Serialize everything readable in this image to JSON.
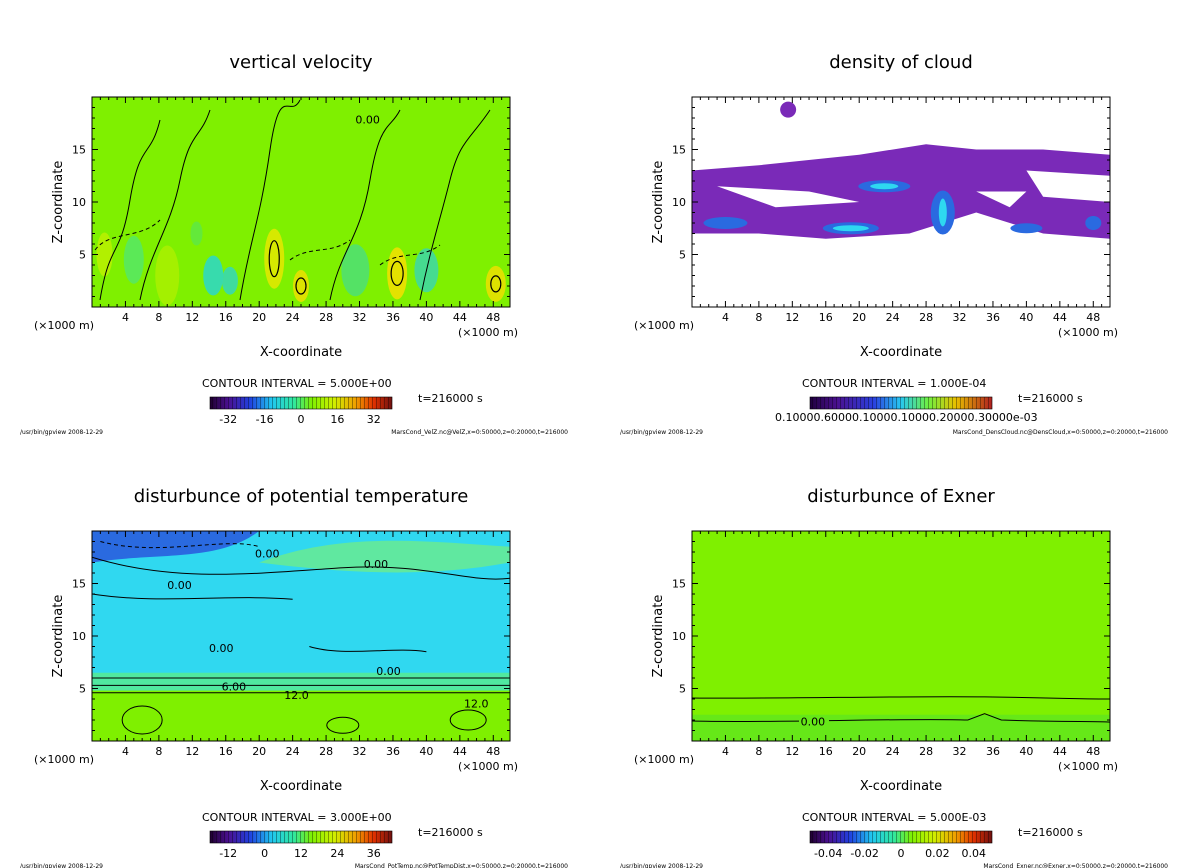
{
  "chart_data": [
    {
      "type": "heatmap",
      "title": "vertical velocity",
      "xlabel": "X-coordinate",
      "ylabel": "Z-coordinate",
      "x_unit_left": "(×1000 m)",
      "x_unit_right": "(×1000 m)",
      "xlim": [
        0,
        50
      ],
      "ylim": [
        0,
        20
      ],
      "xticks": [
        "4",
        "8",
        "12",
        "16",
        "20",
        "24",
        "28",
        "32",
        "36",
        "40",
        "44",
        "48"
      ],
      "yticks": [
        "5",
        "10",
        "15"
      ],
      "contour_interval": "CONTOUR INTERVAL = 5.000E+00",
      "time": "t=216000 s",
      "colorbar": {
        "labels": [
          "-32",
          "-16",
          "0",
          "16",
          "32"
        ],
        "range": [
          -40,
          40
        ]
      },
      "contour_labels": [
        "0.00"
      ],
      "footer_left": "/usr/bin/gpview  2008-12-29",
      "footer_right": "MarsCond_VelZ.nc@VelZ,x=0:50000,z=0:20000,t=216000"
    },
    {
      "type": "heatmap",
      "title": "density of cloud",
      "xlabel": "X-coordinate",
      "ylabel": "Z-coordinate",
      "x_unit_left": "(×1000 m)",
      "x_unit_right": "(×1000 m)",
      "xlim": [
        0,
        50
      ],
      "ylim": [
        0,
        20
      ],
      "xticks": [
        "4",
        "8",
        "12",
        "16",
        "20",
        "24",
        "28",
        "32",
        "36",
        "40",
        "44",
        "48"
      ],
      "yticks": [
        "5",
        "10",
        "15"
      ],
      "contour_interval": "CONTOUR INTERVAL = 1.000E-04",
      "time": "t=216000 s",
      "colorbar": {
        "labels": [
          "0.10000.60000.10000.10000.20000.30000e-03"
        ],
        "range": [
          0,
          0.0004
        ]
      },
      "footer_left": "/usr/bin/gpview  2008-12-29",
      "footer_right": "MarsCond_DensCloud.nc@DensCloud,x=0:50000,z=0:20000,t=216000"
    },
    {
      "type": "heatmap",
      "title": "disturbunce of potential temperature",
      "xlabel": "X-coordinate",
      "ylabel": "Z-coordinate",
      "x_unit_left": "(×1000 m)",
      "x_unit_right": "(×1000 m)",
      "xlim": [
        0,
        50
      ],
      "ylim": [
        0,
        20
      ],
      "xticks": [
        "4",
        "8",
        "12",
        "16",
        "20",
        "24",
        "28",
        "32",
        "36",
        "40",
        "44",
        "48"
      ],
      "yticks": [
        "5",
        "10",
        "15"
      ],
      "contour_interval": "CONTOUR INTERVAL = 3.000E+00",
      "time": "t=216000 s",
      "colorbar": {
        "labels": [
          "-12",
          "0",
          "12",
          "24",
          "36"
        ],
        "range": [
          -18,
          42
        ]
      },
      "contour_labels": [
        "0.00",
        "0.00",
        "0.00",
        "0.00",
        "0.00",
        "6.00",
        "12.0",
        "12.0"
      ],
      "footer_left": "/usr/bin/gpview  2008-12-29",
      "footer_right": "MarsCond_PotTemp.nc@PotTempDist,x=0:50000,z=0:20000,t=216000"
    },
    {
      "type": "heatmap",
      "title": "disturbunce of Exner",
      "xlabel": "X-coordinate",
      "ylabel": "Z-coordinate",
      "x_unit_left": "(×1000 m)",
      "x_unit_right": "(×1000 m)",
      "xlim": [
        0,
        50
      ],
      "ylim": [
        0,
        20
      ],
      "xticks": [
        "4",
        "8",
        "12",
        "16",
        "20",
        "24",
        "28",
        "32",
        "36",
        "40",
        "44",
        "48"
      ],
      "yticks": [
        "5",
        "10",
        "15"
      ],
      "contour_interval": "CONTOUR INTERVAL = 5.000E-03",
      "time": "t=216000 s",
      "colorbar": {
        "labels": [
          "-0.04",
          "-0.02",
          "0",
          "0.02",
          "0.04"
        ],
        "range": [
          -0.05,
          0.05
        ]
      },
      "contour_labels": [
        "0.00"
      ],
      "footer_left": "/usr/bin/gpview  2008-12-29",
      "footer_right": "MarsCond_Exner.nc@Exner,x=0:50000,z=0:20000,t=216000"
    }
  ],
  "colors": {
    "green": "#7ff000",
    "cyan": "#2ed8f0",
    "blue": "#2a6ae0",
    "purple": "#7a2ab8",
    "white": "#ffffff"
  }
}
